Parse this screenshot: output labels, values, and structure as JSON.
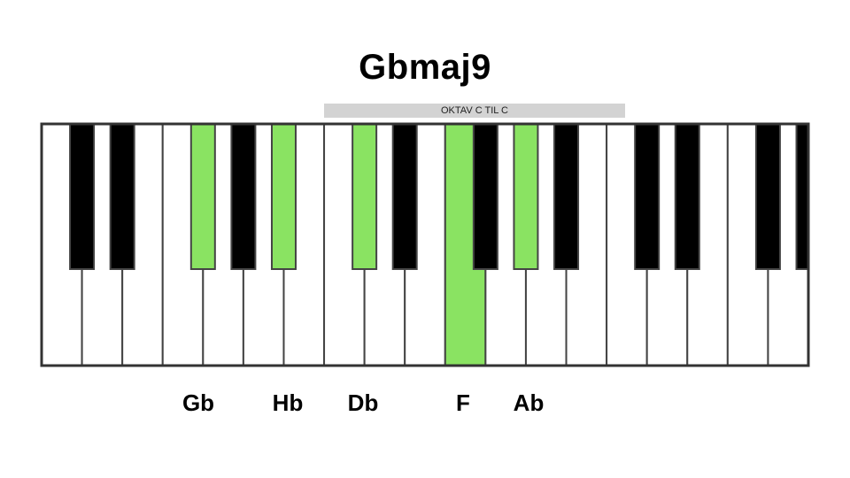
{
  "title": "Gbmaj9",
  "octave_label": "OKTAV C TIL C",
  "colors": {
    "highlight": "#8ae362",
    "black_key": "#000000",
    "white_key": "#ffffff",
    "key_border": "#444444",
    "octave_bar": "#d3d3d3"
  },
  "keyboard": {
    "white_keys": 19,
    "highlighted_white_keys": [
      10
    ],
    "black_keys": [
      {
        "after_white": 1,
        "highlighted": false
      },
      {
        "after_white": 2,
        "highlighted": false
      },
      {
        "after_white": 4,
        "highlighted": true
      },
      {
        "after_white": 5,
        "highlighted": false
      },
      {
        "after_white": 6,
        "highlighted": true
      },
      {
        "after_white": 8,
        "highlighted": true
      },
      {
        "after_white": 9,
        "highlighted": false
      },
      {
        "after_white": 11,
        "highlighted": false
      },
      {
        "after_white": 12,
        "highlighted": true
      },
      {
        "after_white": 13,
        "highlighted": false
      },
      {
        "after_white": 15,
        "highlighted": false
      },
      {
        "after_white": 16,
        "highlighted": false
      },
      {
        "after_white": 18,
        "highlighted": false
      },
      {
        "after_white": 19,
        "highlighted": false
      }
    ]
  },
  "notes": [
    "Gb",
    "Hb",
    "Db",
    "F",
    "Ab"
  ]
}
